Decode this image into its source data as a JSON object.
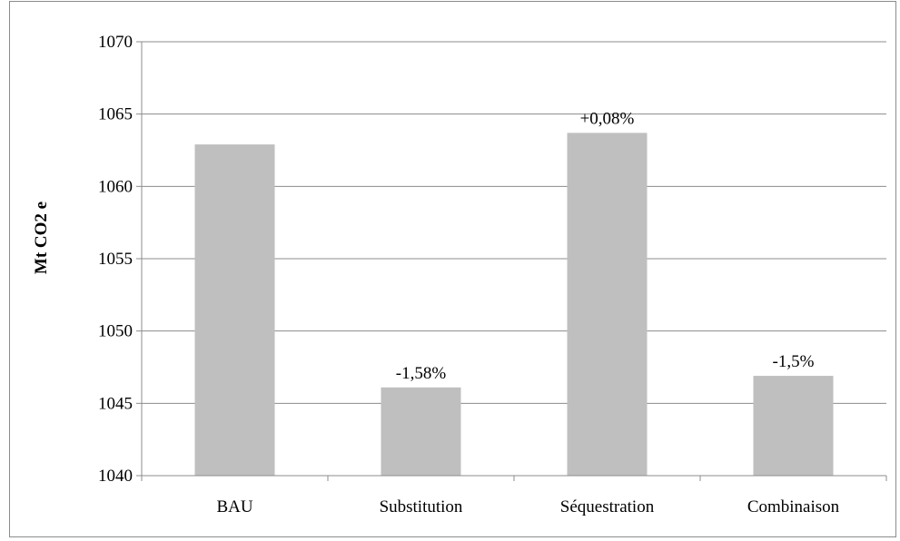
{
  "chart_data": {
    "type": "bar",
    "title": "",
    "xlabel": "",
    "ylabel": "Mt CO2 e",
    "categories": [
      "BAU",
      "Substitution",
      "Séquestration",
      "Combinaison"
    ],
    "values": [
      1062.9,
      1046.1,
      1063.7,
      1046.9
    ],
    "data_labels": [
      "",
      "-1,58%",
      "+0,08%",
      "-1,5%"
    ],
    "ylim": [
      1040,
      1070
    ],
    "yticks": [
      1040,
      1045,
      1050,
      1055,
      1060,
      1065,
      1070
    ],
    "grid": true,
    "legend": "none",
    "bar_color": "#bfbfbf",
    "grid_color": "#8c8c8c",
    "axis_color": "#8c8c8c"
  }
}
